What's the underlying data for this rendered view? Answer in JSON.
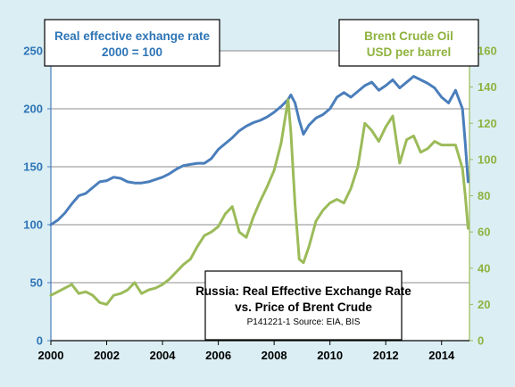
{
  "chart_data": {
    "type": "line",
    "title": "Russia: Real Effective Exchange Rate",
    "subtitle": "vs. Price of Brent Crude",
    "source_note": "P141221-1 Source: EIA, BIS",
    "left_axis_title": [
      "Real effective exhange rate",
      "2000  = 100"
    ],
    "right_axis_title": [
      "Brent Crude Oil",
      "USD per barrel"
    ],
    "x_range": [
      2000,
      2015
    ],
    "x_ticks": [
      "2000",
      "2002",
      "2004",
      "2006",
      "2008",
      "2010",
      "2012",
      "2014"
    ],
    "y_left_range": [
      0,
      250
    ],
    "y_left_ticks": [
      "0",
      "50",
      "100",
      "150",
      "200",
      "250"
    ],
    "y_right_range": [
      0,
      160
    ],
    "y_right_ticks": [
      "0",
      "20",
      "40",
      "60",
      "80",
      "100",
      "120",
      "140",
      "160"
    ],
    "grid": "horizontal",
    "colors": {
      "background": "#dbeef4",
      "plot_background": "#ffffff",
      "reer": "#4a7ebb",
      "brent": "#9bbb59",
      "left_axis": "#2e75b6",
      "right_axis": "#8fb23f"
    },
    "series": [
      {
        "name": "Real effective exhange rate",
        "axis": "left",
        "points": [
          [
            2000.0,
            100
          ],
          [
            2000.25,
            104
          ],
          [
            2000.5,
            110
          ],
          [
            2000.75,
            118
          ],
          [
            2001.0,
            125
          ],
          [
            2001.25,
            127
          ],
          [
            2001.5,
            132
          ],
          [
            2001.75,
            137
          ],
          [
            2002.0,
            138
          ],
          [
            2002.25,
            141
          ],
          [
            2002.5,
            140
          ],
          [
            2002.75,
            137
          ],
          [
            2003.0,
            136
          ],
          [
            2003.25,
            136
          ],
          [
            2003.5,
            137
          ],
          [
            2003.75,
            139
          ],
          [
            2004.0,
            141
          ],
          [
            2004.25,
            144
          ],
          [
            2004.5,
            148
          ],
          [
            2004.75,
            151
          ],
          [
            2005.0,
            152
          ],
          [
            2005.25,
            153
          ],
          [
            2005.5,
            153
          ],
          [
            2005.75,
            157
          ],
          [
            2006.0,
            165
          ],
          [
            2006.25,
            170
          ],
          [
            2006.5,
            175
          ],
          [
            2006.75,
            181
          ],
          [
            2007.0,
            185
          ],
          [
            2007.25,
            188
          ],
          [
            2007.5,
            190
          ],
          [
            2007.75,
            193
          ],
          [
            2008.0,
            197
          ],
          [
            2008.25,
            202
          ],
          [
            2008.5,
            208
          ],
          [
            2008.6,
            212
          ],
          [
            2008.75,
            205
          ],
          [
            2008.9,
            190
          ],
          [
            2009.05,
            178
          ],
          [
            2009.25,
            186
          ],
          [
            2009.5,
            192
          ],
          [
            2009.75,
            195
          ],
          [
            2010.0,
            200
          ],
          [
            2010.25,
            210
          ],
          [
            2010.5,
            214
          ],
          [
            2010.75,
            210
          ],
          [
            2011.0,
            215
          ],
          [
            2011.25,
            220
          ],
          [
            2011.5,
            223
          ],
          [
            2011.75,
            216
          ],
          [
            2012.0,
            220
          ],
          [
            2012.25,
            225
          ],
          [
            2012.5,
            218
          ],
          [
            2012.75,
            223
          ],
          [
            2013.0,
            228
          ],
          [
            2013.25,
            225
          ],
          [
            2013.5,
            222
          ],
          [
            2013.75,
            218
          ],
          [
            2014.0,
            210
          ],
          [
            2014.25,
            205
          ],
          [
            2014.5,
            216
          ],
          [
            2014.75,
            200
          ],
          [
            2014.85,
            170
          ],
          [
            2014.95,
            137
          ]
        ]
      },
      {
        "name": "Brent Crude Oil",
        "axis": "right",
        "points": [
          [
            2000.0,
            25
          ],
          [
            2000.25,
            27
          ],
          [
            2000.5,
            29
          ],
          [
            2000.75,
            31
          ],
          [
            2001.0,
            26
          ],
          [
            2001.25,
            27
          ],
          [
            2001.5,
            25
          ],
          [
            2001.75,
            21
          ],
          [
            2002.0,
            20
          ],
          [
            2002.25,
            25
          ],
          [
            2002.5,
            26
          ],
          [
            2002.75,
            28
          ],
          [
            2003.0,
            32
          ],
          [
            2003.25,
            26
          ],
          [
            2003.5,
            28
          ],
          [
            2003.75,
            29
          ],
          [
            2004.0,
            31
          ],
          [
            2004.25,
            34
          ],
          [
            2004.5,
            38
          ],
          [
            2004.75,
            42
          ],
          [
            2005.0,
            45
          ],
          [
            2005.25,
            52
          ],
          [
            2005.5,
            58
          ],
          [
            2005.75,
            60
          ],
          [
            2006.0,
            63
          ],
          [
            2006.25,
            70
          ],
          [
            2006.5,
            74
          ],
          [
            2006.75,
            60
          ],
          [
            2007.0,
            57
          ],
          [
            2007.25,
            68
          ],
          [
            2007.5,
            77
          ],
          [
            2007.75,
            85
          ],
          [
            2008.0,
            94
          ],
          [
            2008.25,
            109
          ],
          [
            2008.5,
            133
          ],
          [
            2008.6,
            115
          ],
          [
            2008.75,
            75
          ],
          [
            2008.9,
            45
          ],
          [
            2009.05,
            43
          ],
          [
            2009.25,
            52
          ],
          [
            2009.5,
            66
          ],
          [
            2009.75,
            72
          ],
          [
            2010.0,
            76
          ],
          [
            2010.25,
            78
          ],
          [
            2010.5,
            76
          ],
          [
            2010.75,
            84
          ],
          [
            2011.0,
            96
          ],
          [
            2011.25,
            120
          ],
          [
            2011.5,
            116
          ],
          [
            2011.75,
            110
          ],
          [
            2012.0,
            118
          ],
          [
            2012.25,
            124
          ],
          [
            2012.5,
            98
          ],
          [
            2012.75,
            111
          ],
          [
            2013.0,
            113
          ],
          [
            2013.25,
            104
          ],
          [
            2013.5,
            106
          ],
          [
            2013.75,
            110
          ],
          [
            2014.0,
            108
          ],
          [
            2014.25,
            108
          ],
          [
            2014.5,
            108
          ],
          [
            2014.75,
            95
          ],
          [
            2014.85,
            80
          ],
          [
            2014.95,
            62
          ]
        ]
      }
    ]
  }
}
